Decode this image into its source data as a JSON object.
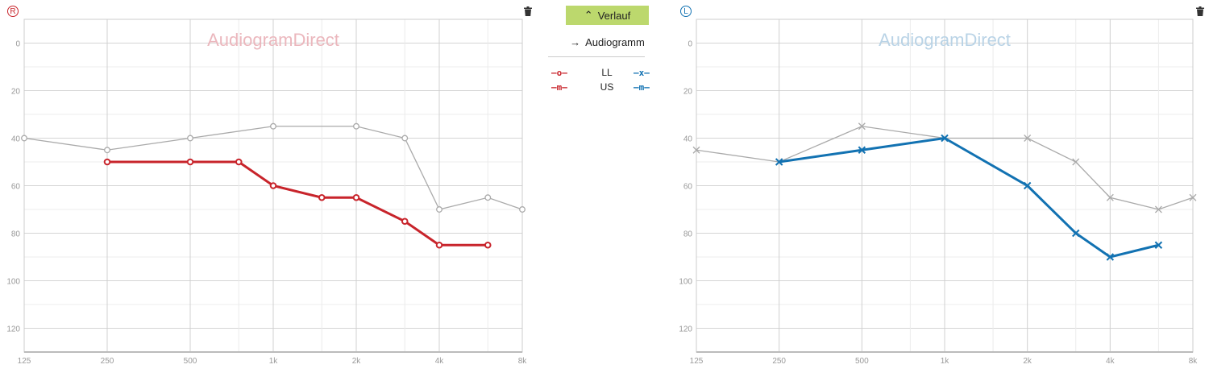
{
  "colors": {
    "right": "#c8242b",
    "left": "#1272b2",
    "grey": "#aaaaaa",
    "button": "#bcd86d",
    "watermark_right": "#ebb7bd",
    "watermark_left": "#b9d3e6"
  },
  "toolbar": {
    "verlauf_label": "Verlauf",
    "verlauf_icon": "double-chevron-up-icon",
    "audiogramm_label": "Audiogramm",
    "audiogramm_icon": "arrow-right-icon"
  },
  "legend": {
    "rows": [
      {
        "label": "LL",
        "right_symbol": "—o—",
        "left_symbol": "—x—"
      },
      {
        "label": "US",
        "right_symbol": "—m—",
        "left_symbol": "—m—"
      }
    ]
  },
  "right_ear": {
    "badge": "R",
    "trash_icon": "trash-icon"
  },
  "left_ear": {
    "badge": "L",
    "trash_icon": "trash-icon"
  },
  "chart_data": [
    {
      "type": "line",
      "title": "AudiogramDirect",
      "ear": "right",
      "xscale": "log2",
      "xticks": [
        "125",
        "250",
        "500",
        "1k",
        "2k",
        "4k",
        "8k"
      ],
      "xtick_values": [
        125,
        250,
        500,
        1000,
        2000,
        4000,
        8000
      ],
      "ylim": [
        -10,
        130
      ],
      "yticks": [
        0,
        20,
        40,
        60,
        80,
        100,
        120
      ],
      "y_inverted": true,
      "series": [
        {
          "name": "previous",
          "color": "#aaaaaa",
          "marker": "o",
          "x": [
            125,
            250,
            500,
            1000,
            2000,
            3000,
            4000,
            6000,
            8000
          ],
          "y": [
            40,
            45,
            40,
            35,
            35,
            40,
            70,
            65,
            70
          ]
        },
        {
          "name": "LL",
          "color": "#c8242b",
          "marker": "o",
          "x": [
            250,
            500,
            750,
            1000,
            1500,
            2000,
            3000,
            4000,
            6000
          ],
          "y": [
            50,
            50,
            50,
            60,
            65,
            65,
            75,
            85,
            85
          ]
        }
      ]
    },
    {
      "type": "line",
      "title": "AudiogramDirect",
      "ear": "left",
      "xscale": "log2",
      "xticks": [
        "125",
        "250",
        "500",
        "1k",
        "2k",
        "4k",
        "8k"
      ],
      "xtick_values": [
        125,
        250,
        500,
        1000,
        2000,
        4000,
        8000
      ],
      "ylim": [
        -10,
        130
      ],
      "yticks": [
        0,
        20,
        40,
        60,
        80,
        100,
        120
      ],
      "y_inverted": true,
      "series": [
        {
          "name": "previous",
          "color": "#aaaaaa",
          "marker": "x",
          "x": [
            125,
            250,
            500,
            1000,
            2000,
            3000,
            4000,
            6000,
            8000
          ],
          "y": [
            45,
            50,
            35,
            40,
            40,
            50,
            65,
            70,
            65
          ]
        },
        {
          "name": "LL",
          "color": "#1272b2",
          "marker": "x",
          "x": [
            250,
            500,
            1000,
            2000,
            3000,
            4000,
            6000
          ],
          "y": [
            50,
            45,
            40,
            60,
            80,
            90,
            85
          ]
        }
      ]
    }
  ]
}
